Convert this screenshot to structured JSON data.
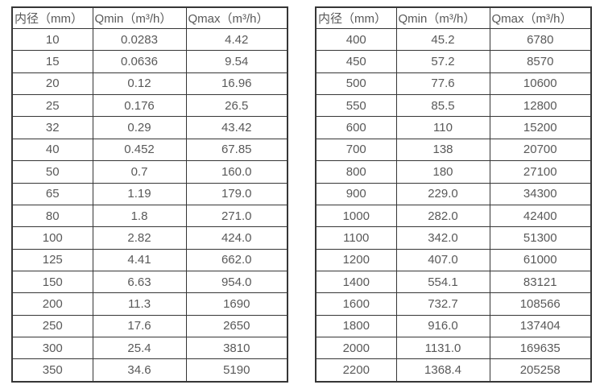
{
  "style": {
    "border_color": "#363636",
    "text_color": "#595959",
    "background": "#ffffff"
  },
  "tables": [
    {
      "headers": [
        "内径（mm）",
        "Qmin（m³/h）",
        "Qmax（m³/h）"
      ],
      "rows": [
        [
          "10",
          "0.0283",
          "4.42"
        ],
        [
          "15",
          "0.0636",
          "9.54"
        ],
        [
          "20",
          "0.12",
          "16.96"
        ],
        [
          "25",
          "0.176",
          "26.5"
        ],
        [
          "32",
          "0.29",
          "43.42"
        ],
        [
          "40",
          "0.452",
          "67.85"
        ],
        [
          "50",
          "0.7",
          "160.0"
        ],
        [
          "65",
          "1.19",
          "179.0"
        ],
        [
          "80",
          "1.8",
          "271.0"
        ],
        [
          "100",
          "2.82",
          "424.0"
        ],
        [
          "125",
          "4.41",
          "662.0"
        ],
        [
          "150",
          "6.63",
          "954.0"
        ],
        [
          "200",
          "11.3",
          "1690"
        ],
        [
          "250",
          "17.6",
          "2650"
        ],
        [
          "300",
          "25.4",
          "3810"
        ],
        [
          "350",
          "34.6",
          "5190"
        ]
      ]
    },
    {
      "headers": [
        "内径（mm）",
        "Qmin（m³/h）",
        "Qmax（m³/h）"
      ],
      "rows": [
        [
          "400",
          "45.2",
          "6780"
        ],
        [
          "450",
          "57.2",
          "8570"
        ],
        [
          "500",
          "77.6",
          "10600"
        ],
        [
          "550",
          "85.5",
          "12800"
        ],
        [
          "600",
          "110",
          "15200"
        ],
        [
          "700",
          "138",
          "20700"
        ],
        [
          "800",
          "180",
          "27100"
        ],
        [
          "900",
          "229.0",
          "34300"
        ],
        [
          "1000",
          "282.0",
          "42400"
        ],
        [
          "1100",
          "342.0",
          "51300"
        ],
        [
          "1200",
          "407.0",
          "61000"
        ],
        [
          "1400",
          "554.1",
          "83121"
        ],
        [
          "1600",
          "732.7",
          "108566"
        ],
        [
          "1800",
          "916.0",
          "137404"
        ],
        [
          "2000",
          "1131.0",
          "169635"
        ],
        [
          "2200",
          "1368.4",
          "205258"
        ]
      ]
    }
  ]
}
